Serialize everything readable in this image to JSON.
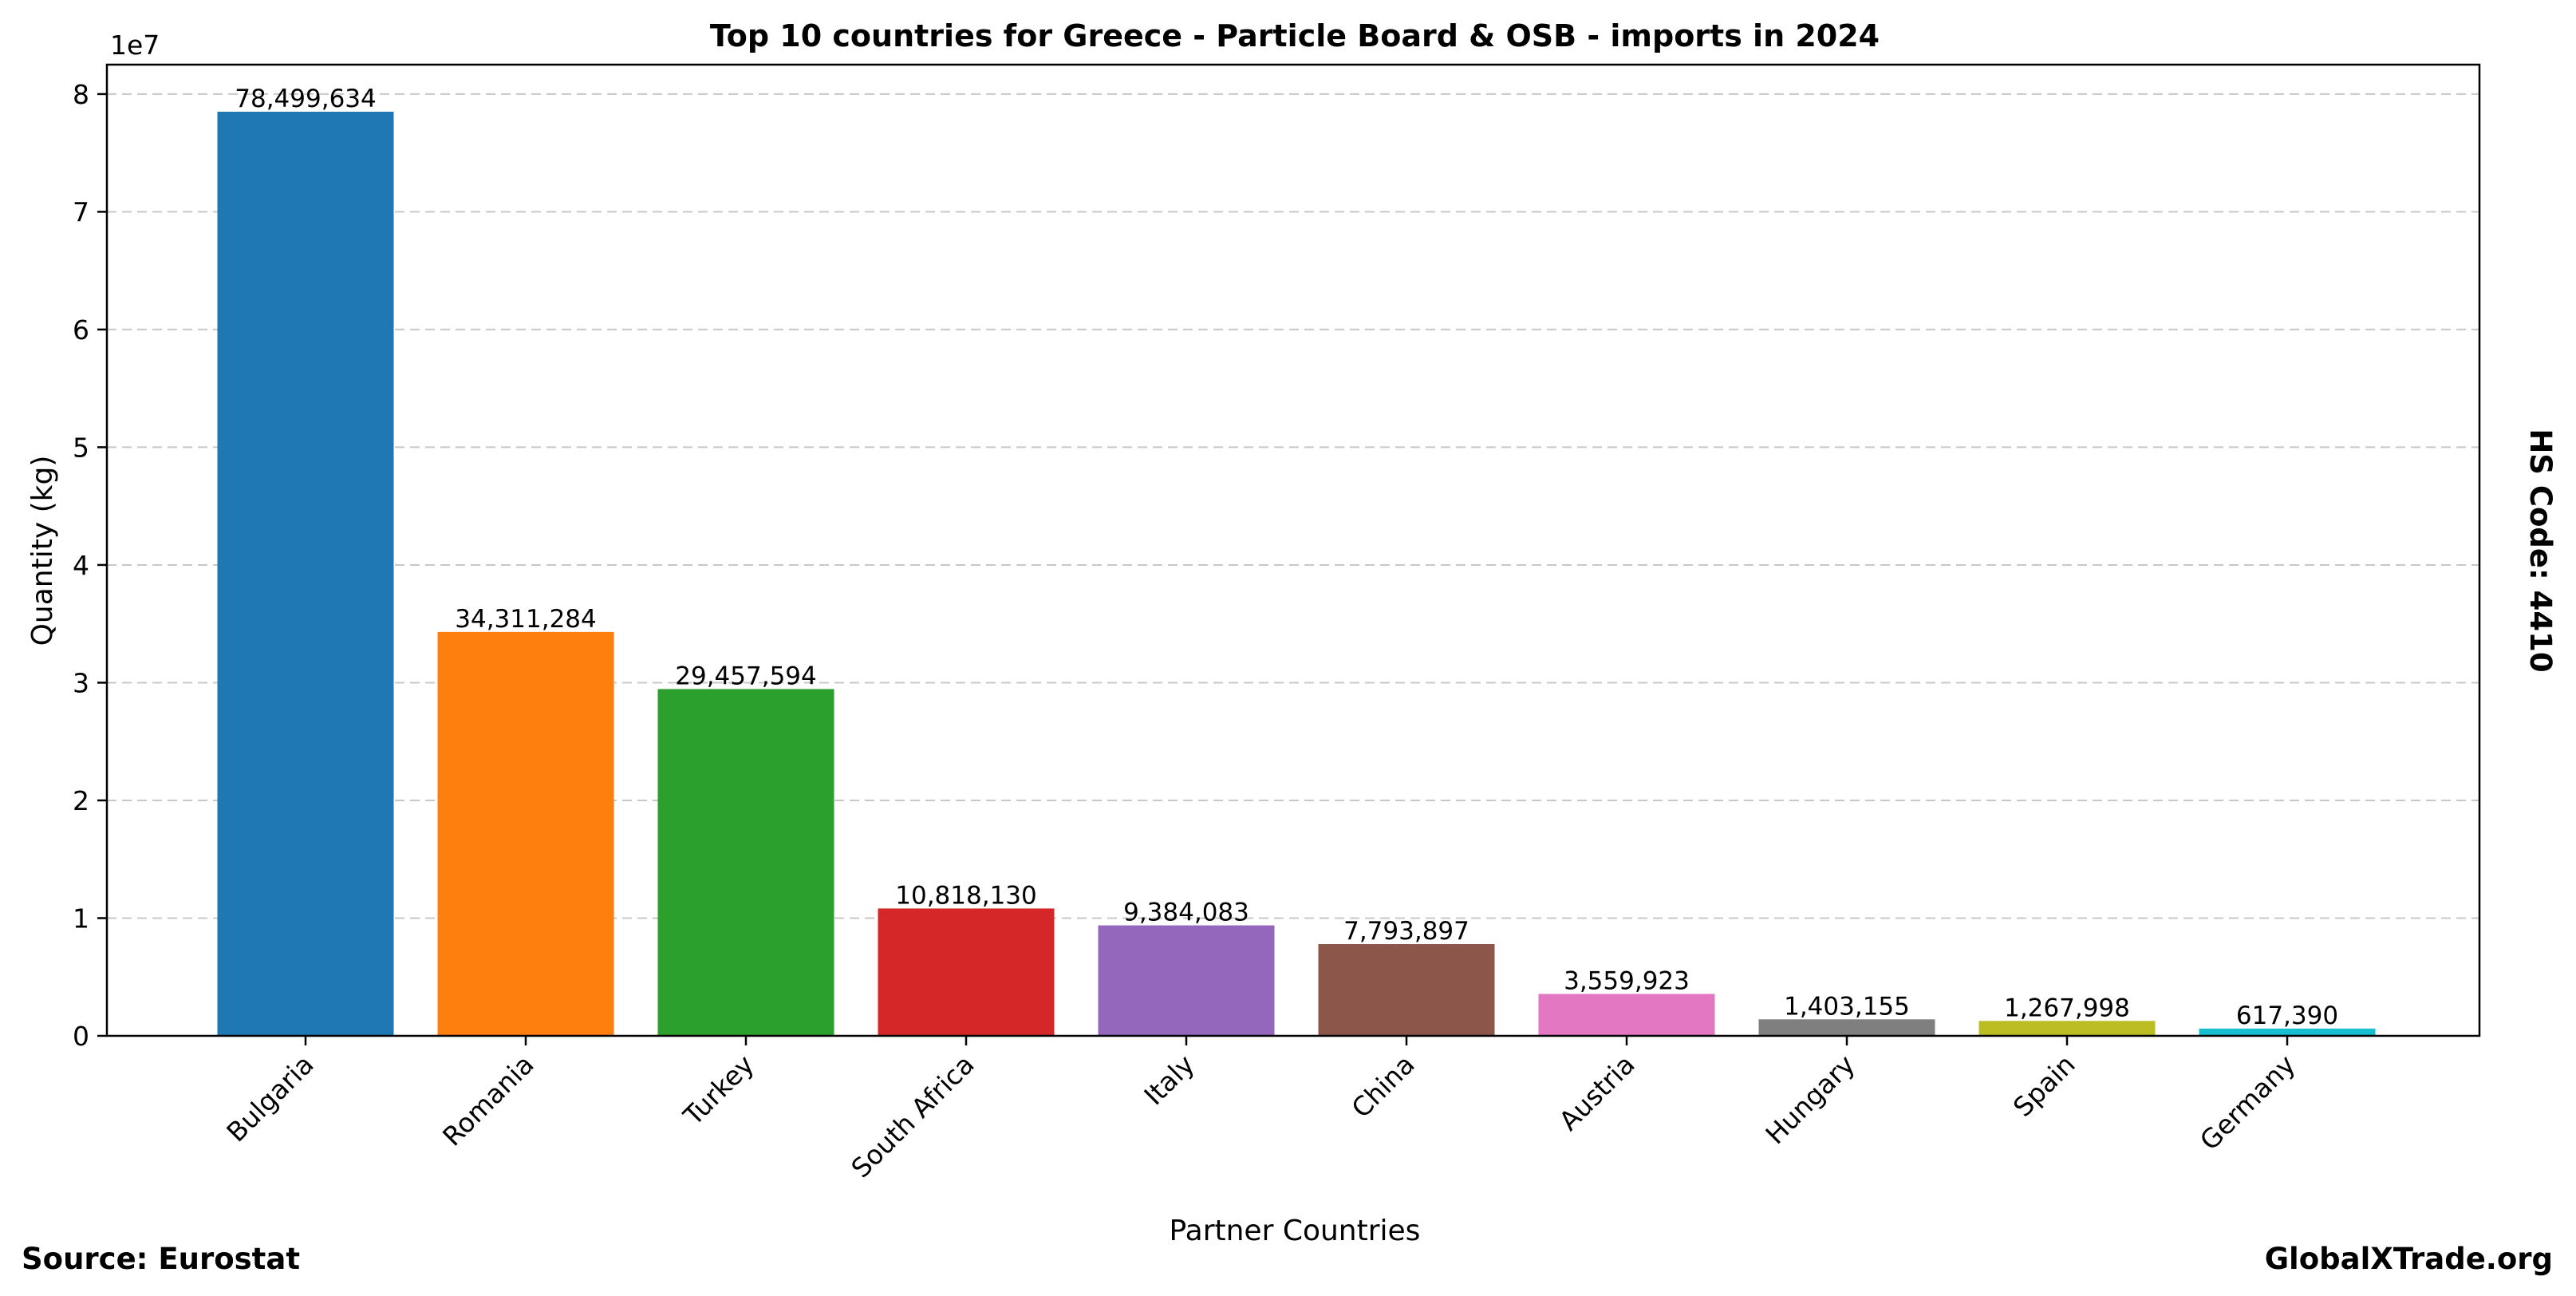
{
  "chart_data": {
    "type": "bar",
    "title": "Top 10 countries for Greece - Particle Board & OSB - imports in 2024",
    "xlabel": "Partner Countries",
    "ylabel": "Quantity (kg)",
    "y_scale_label": "1e7",
    "y_ticks": [
      "0",
      "1",
      "2",
      "3",
      "4",
      "5",
      "6",
      "7",
      "8"
    ],
    "ylim": [
      0,
      82500000
    ],
    "grid": "horizontal dashed",
    "categories": [
      "Bulgaria",
      "Romania",
      "Turkey",
      "South Africa",
      "Italy",
      "China",
      "Austria",
      "Hungary",
      "Spain",
      "Germany"
    ],
    "values": [
      78499634,
      34311284,
      29457594,
      10818130,
      9384083,
      7793897,
      3559923,
      1403155,
      1267998,
      617390
    ],
    "value_labels": [
      "78,499,634",
      "34,311,284",
      "29,457,594",
      "10,818,130",
      "9,384,083",
      "7,793,897",
      "3,559,923",
      "1,403,155",
      "1,267,998",
      "617,390"
    ],
    "colors": [
      "#1f77b4",
      "#ff7f0e",
      "#2ca02c",
      "#d62728",
      "#9467bd",
      "#8c564b",
      "#e377c2",
      "#7f7f7f",
      "#bcbd22",
      "#17becf"
    ],
    "right_label": "HS Code: 4410"
  },
  "footer": {
    "source": "Source: Eurostat",
    "brand": "GlobalXTrade.org"
  }
}
